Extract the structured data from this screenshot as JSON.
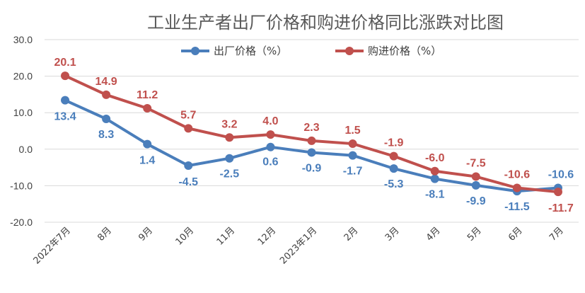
{
  "chart_data": {
    "type": "line",
    "title": "工业生产者出厂价格和购进价格同比涨跌对比图",
    "categories": [
      "2022年7月",
      "8月",
      "9月",
      "10月",
      "11月",
      "12月",
      "2023年1月",
      "2月",
      "3月",
      "4月",
      "5月",
      "6月",
      "7月"
    ],
    "series": [
      {
        "name": "出厂价格（%）",
        "color": "#4a7ebb",
        "values": [
          13.4,
          8.3,
          1.4,
          -4.5,
          -2.5,
          0.6,
          -0.9,
          -1.7,
          -5.3,
          -8.1,
          -9.9,
          -11.5,
          -10.6
        ],
        "labels": [
          "13.4",
          "8.3",
          "1.4",
          "-4.5",
          "-2.5",
          "0.6",
          "-0.9",
          "-1.7",
          "-5.3",
          "-8.1",
          "-9.9",
          "-11.5",
          "-10.6"
        ]
      },
      {
        "name": "购进价格（%）",
        "color": "#c0504d",
        "values": [
          20.1,
          14.9,
          11.2,
          5.7,
          3.2,
          4.0,
          2.3,
          1.5,
          -1.9,
          -6.0,
          -7.5,
          -10.6,
          -11.7
        ],
        "labels": [
          "20.1",
          "14.9",
          "11.2",
          "5.7",
          "3.2",
          "4.0",
          "2.3",
          "1.5",
          "-1.9",
          "-6.0",
          "-7.5",
          "-10.6",
          "-11.7"
        ]
      }
    ],
    "y_ticks": [
      "30.0",
      "20.0",
      "10.0",
      "0.0",
      "-10.0",
      "-20.0"
    ],
    "ylim": [
      -20,
      30
    ],
    "grid": true,
    "legend_position": "top"
  }
}
